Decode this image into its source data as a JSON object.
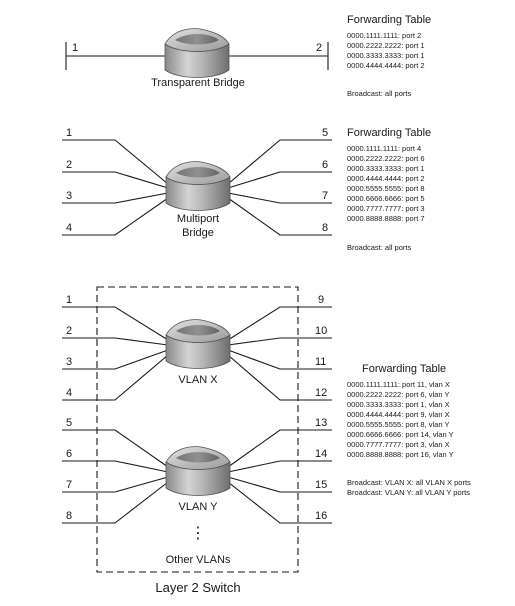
{
  "transparent_bridge": {
    "label": "Transparent Bridge",
    "ports": [
      "1",
      "2"
    ],
    "table_title": "Forwarding Table",
    "entries": [
      "0000.1111.1111: port 2",
      "0000.2222.2222: port 1",
      "0000.3333.3333: port 1",
      "0000.4444.4444: port 2"
    ],
    "broadcast": "Broadcast: all ports"
  },
  "multiport_bridge": {
    "label_lines": [
      "Multiport",
      "Bridge"
    ],
    "left_ports": [
      "1",
      "2",
      "3",
      "4"
    ],
    "right_ports": [
      "5",
      "6",
      "7",
      "8"
    ],
    "table_title": "Forwarding Table",
    "entries": [
      "0000.1111.1111: port 4",
      "0000.2222.2222: port 6",
      "0000.3333.3333: port 1",
      "0000.4444.4444: port 2",
      "0000.5555.5555: port 8",
      "0000.6666.6666: port 5",
      "0000.7777.7777: port 3",
      "0000.8888.8888: port 7"
    ],
    "broadcast": "Broadcast: all ports"
  },
  "layer2_switch": {
    "label": "Layer 2 Switch",
    "vlan_x": {
      "label": "VLAN X",
      "left_ports": [
        "1",
        "2",
        "3",
        "4"
      ],
      "right_ports": [
        "9",
        "10",
        "11",
        "12"
      ]
    },
    "vlan_y": {
      "label": "VLAN Y",
      "left_ports": [
        "5",
        "6",
        "7",
        "8"
      ],
      "right_ports": [
        "13",
        "14",
        "15",
        "16"
      ]
    },
    "ellipsis": "⋮",
    "other_vlans": "Other VLANs",
    "table_title": "Forwarding Table",
    "entries": [
      "0000.1111.1111: port 11, vlan X",
      "0000.2222.2222: port 6, vlan Y",
      "0000.3333.3333: port 1, vlan X",
      "0000.4444.4444: port 9, vlan X",
      "0000.5555.5555: port 8, vlan Y",
      "0000.6666.6666: port 14, vlan Y",
      "0000.7777.7777: port 3, vlan X",
      "0000.8888.8888: port 16, vlan Y"
    ],
    "broadcast_lines": [
      "Broadcast: VLAN X: all VLAN X ports",
      "Broadcast: VLAN Y: all VLAN Y ports"
    ]
  }
}
